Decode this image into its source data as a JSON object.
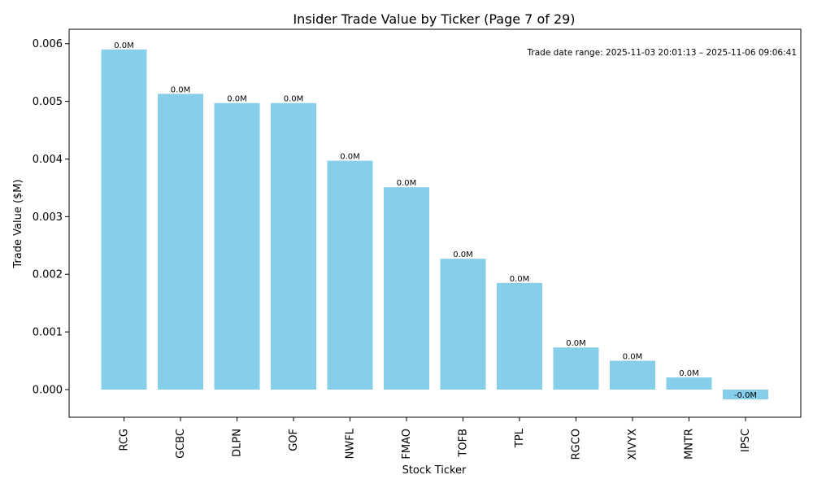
{
  "chart_data": {
    "type": "bar",
    "title": "Insider Trade Value by Ticker (Page 7 of 29)",
    "xlabel": "Stock Ticker",
    "ylabel": "Trade Value ($M)",
    "categories": [
      "RCG",
      "GCBC",
      "DLPN",
      "GOF",
      "NWFL",
      "FMAO",
      "TOFB",
      "TPL",
      "RGCO",
      "XIVYX",
      "MNTR",
      "IPSC"
    ],
    "values": [
      0.0059,
      0.00513,
      0.00497,
      0.00497,
      0.00397,
      0.00351,
      0.00227,
      0.00185,
      0.00073,
      0.0005,
      0.00021,
      -0.00017
    ],
    "data_labels": [
      "0.0M",
      "0.0M",
      "0.0M",
      "0.0M",
      "0.0M",
      "0.0M",
      "0.0M",
      "0.0M",
      "0.0M",
      "0.0M",
      "0.0M",
      "-0.0M"
    ],
    "yticks": [
      0.0,
      0.001,
      0.002,
      0.003,
      0.004,
      0.005,
      0.006
    ],
    "ytick_labels": [
      "0.000",
      "0.001",
      "0.002",
      "0.003",
      "0.004",
      "0.005",
      "0.006"
    ],
    "ylim": [
      -0.00048,
      0.00625
    ],
    "bar_color": "#87ceeb",
    "annotation": "Trade date range: 2025-11-03 20:01:13 – 2025-11-06 09:06:41",
    "grid": false,
    "legend": "none"
  }
}
